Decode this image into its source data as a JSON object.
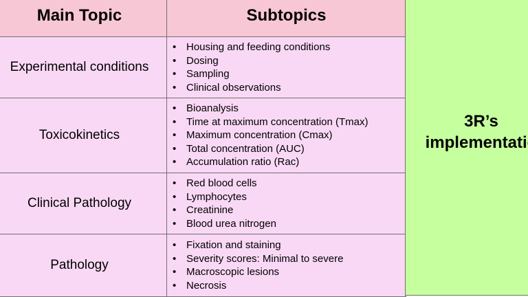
{
  "table": {
    "headers": [
      "Main Topic",
      "Subtopics"
    ],
    "rows": [
      {
        "main": "Experimental conditions",
        "subtopics": [
          "Housing and feeding conditions",
          "Dosing",
          "Sampling",
          "Clinical observations"
        ]
      },
      {
        "main": "Toxicokinetics",
        "subtopics": [
          "Bioanalysis",
          "Time at maximum concentration (Tmax)",
          "Maximum concentration (Cmax)",
          "Total concentration  (AUC)",
          "Accumulation ratio (Rac)"
        ]
      },
      {
        "main": "Clinical Pathology",
        "subtopics": [
          "Red blood cells",
          "Lymphocytes",
          "Creatinine",
          "Blood urea nitrogen"
        ]
      },
      {
        "main": "Pathology",
        "subtopics": [
          "Fixation and staining",
          "Severity scores: Minimal to severe",
          "Macroscopic lesions",
          "Necrosis"
        ]
      }
    ]
  },
  "side_panel": {
    "line1": "3R’s",
    "line2": "implementatio"
  },
  "colors": {
    "header_bg": "#f8c7d6",
    "cell_bg": "#f9d8f5",
    "side_bg": "#c6ff9d",
    "border": "#6f6f6f"
  }
}
